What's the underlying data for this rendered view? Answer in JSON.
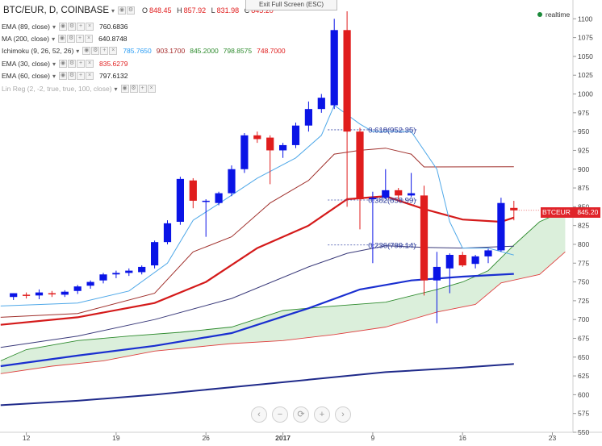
{
  "header": {
    "symbol": "BTC/EUR, D, COINBASE",
    "ohlc": [
      {
        "label": "O",
        "value": "848.45"
      },
      {
        "label": "H",
        "value": "857.92"
      },
      {
        "label": "L",
        "value": "831.98"
      },
      {
        "label": "C",
        "value": "845.20"
      }
    ],
    "exit_fullscreen": "Exit Full Screen (ESC)",
    "realtime": "realtime"
  },
  "indicators": [
    {
      "name": "EMA (89, close)",
      "values": [
        {
          "v": "760.6836",
          "color": "#222222"
        }
      ]
    },
    {
      "name": "MA (200, close)",
      "values": [
        {
          "v": "640.8748",
          "color": "#222222"
        }
      ]
    },
    {
      "name": "Ichimoku (9, 26, 52, 26)",
      "values": [
        {
          "v": "785.7650",
          "color": "#2a9df4"
        },
        {
          "v": "903.1700",
          "color": "#a52a2a"
        },
        {
          "v": "845.2000",
          "color": "#2e8b2e"
        },
        {
          "v": "798.8575",
          "color": "#2e8b2e"
        },
        {
          "v": "748.7000",
          "color": "#e01d1d"
        }
      ]
    },
    {
      "name": "EMA (30, close)",
      "values": [
        {
          "v": "835.6279",
          "color": "#e01d1d"
        }
      ]
    },
    {
      "name": "EMA (60, close)",
      "values": [
        {
          "v": "797.6132",
          "color": "#222222"
        }
      ]
    },
    {
      "name": "Lin Reg (2, -2, true, true, 100, close)",
      "values": []
    }
  ],
  "price_tag": {
    "label": "BTCEUR",
    "value": "845.20"
  },
  "nav_buttons": [
    "‹",
    "−",
    "⟳",
    "+",
    "›"
  ],
  "colors": {
    "up": "#0a14e6",
    "down": "#e01d1d",
    "cloud": "#d5ecd5",
    "ema89": "#1a2fd0",
    "ma200": "#1f2a8a",
    "ema30": "#d41a1a",
    "ema60": "#3a3a7a",
    "tenkan": "#4fa8e8",
    "kijun": "#a0302c",
    "spanA": "#2e8b2e",
    "spanB": "#e04040"
  },
  "chart_data": {
    "type": "candlestick",
    "title": "BTC/EUR, D, COINBASE",
    "ylim": [
      550,
      1110
    ],
    "y_ticks": [
      550,
      575,
      600,
      625,
      650,
      675,
      700,
      725,
      750,
      775,
      800,
      825,
      850,
      875,
      900,
      925,
      950,
      975,
      1000,
      1025,
      1050,
      1075,
      1100
    ],
    "x_ticks": [
      {
        "label": "12",
        "i": 1
      },
      {
        "label": "19",
        "i": 8
      },
      {
        "label": "26",
        "i": 15
      },
      {
        "label": "2017",
        "i": 21
      },
      {
        "label": "9",
        "i": 28
      },
      {
        "label": "16",
        "i": 35
      },
      {
        "label": "23",
        "i": 42
      }
    ],
    "candles": [
      {
        "o": 730,
        "h": 735,
        "l": 726,
        "c": 735
      },
      {
        "o": 733,
        "h": 736,
        "l": 728,
        "c": 732
      },
      {
        "o": 732,
        "h": 740,
        "l": 727,
        "c": 736
      },
      {
        "o": 735,
        "h": 738,
        "l": 730,
        "c": 734
      },
      {
        "o": 733,
        "h": 739,
        "l": 730,
        "c": 737
      },
      {
        "o": 738,
        "h": 746,
        "l": 734,
        "c": 744
      },
      {
        "o": 745,
        "h": 752,
        "l": 741,
        "c": 750
      },
      {
        "o": 752,
        "h": 762,
        "l": 748,
        "c": 760
      },
      {
        "o": 760,
        "h": 765,
        "l": 755,
        "c": 762
      },
      {
        "o": 762,
        "h": 768,
        "l": 758,
        "c": 765
      },
      {
        "o": 763,
        "h": 772,
        "l": 760,
        "c": 770
      },
      {
        "o": 772,
        "h": 805,
        "l": 768,
        "c": 803
      },
      {
        "o": 803,
        "h": 832,
        "l": 800,
        "c": 828
      },
      {
        "o": 830,
        "h": 890,
        "l": 826,
        "c": 887
      },
      {
        "o": 885,
        "h": 888,
        "l": 848,
        "c": 858
      },
      {
        "o": 858,
        "h": 860,
        "l": 810,
        "c": 858
      },
      {
        "o": 855,
        "h": 870,
        "l": 852,
        "c": 868
      },
      {
        "o": 868,
        "h": 905,
        "l": 864,
        "c": 900
      },
      {
        "o": 900,
        "h": 948,
        "l": 895,
        "c": 945
      },
      {
        "o": 945,
        "h": 950,
        "l": 935,
        "c": 940
      },
      {
        "o": 942,
        "h": 945,
        "l": 880,
        "c": 925
      },
      {
        "o": 925,
        "h": 935,
        "l": 915,
        "c": 932
      },
      {
        "o": 932,
        "h": 962,
        "l": 928,
        "c": 958
      },
      {
        "o": 958,
        "h": 990,
        "l": 950,
        "c": 980
      },
      {
        "o": 980,
        "h": 1000,
        "l": 975,
        "c": 995
      },
      {
        "o": 985,
        "h": 1100,
        "l": 980,
        "c": 1085
      },
      {
        "o": 1085,
        "h": 1110,
        "l": 850,
        "c": 950
      },
      {
        "o": 950,
        "h": 955,
        "l": 820,
        "c": 860
      },
      {
        "o": 860,
        "h": 870,
        "l": 775,
        "c": 862
      },
      {
        "o": 862,
        "h": 900,
        "l": 860,
        "c": 872
      },
      {
        "o": 872,
        "h": 875,
        "l": 860,
        "c": 865
      },
      {
        "o": 865,
        "h": 895,
        "l": 863,
        "c": 868
      },
      {
        "o": 865,
        "h": 878,
        "l": 732,
        "c": 752
      },
      {
        "o": 752,
        "h": 790,
        "l": 695,
        "c": 770
      },
      {
        "o": 768,
        "h": 788,
        "l": 735,
        "c": 786
      },
      {
        "o": 786,
        "h": 790,
        "l": 770,
        "c": 772
      },
      {
        "o": 774,
        "h": 786,
        "l": 768,
        "c": 784
      },
      {
        "o": 784,
        "h": 794,
        "l": 775,
        "c": 792
      },
      {
        "o": 792,
        "h": 862,
        "l": 790,
        "c": 855
      },
      {
        "o": 848.45,
        "h": 857.92,
        "l": 831.98,
        "c": 845.2
      }
    ],
    "ema89": [
      {
        "x": -1,
        "y": 638
      },
      {
        "x": 5,
        "y": 652
      },
      {
        "x": 11,
        "y": 665
      },
      {
        "x": 17,
        "y": 682
      },
      {
        "x": 23,
        "y": 715
      },
      {
        "x": 27,
        "y": 740
      },
      {
        "x": 31,
        "y": 752
      },
      {
        "x": 35,
        "y": 757
      },
      {
        "x": 39,
        "y": 760.7
      }
    ],
    "ma200": [
      {
        "x": -1,
        "y": 586
      },
      {
        "x": 5,
        "y": 592
      },
      {
        "x": 11,
        "y": 600
      },
      {
        "x": 17,
        "y": 610
      },
      {
        "x": 23,
        "y": 620
      },
      {
        "x": 29,
        "y": 630
      },
      {
        "x": 35,
        "y": 636
      },
      {
        "x": 39,
        "y": 640.9
      }
    ],
    "ema30": [
      {
        "x": -1,
        "y": 693
      },
      {
        "x": 5,
        "y": 703
      },
      {
        "x": 11,
        "y": 722
      },
      {
        "x": 15,
        "y": 750
      },
      {
        "x": 19,
        "y": 795
      },
      {
        "x": 23,
        "y": 825
      },
      {
        "x": 26,
        "y": 860
      },
      {
        "x": 29,
        "y": 864
      },
      {
        "x": 32,
        "y": 847
      },
      {
        "x": 35,
        "y": 833
      },
      {
        "x": 38,
        "y": 830
      },
      {
        "x": 39,
        "y": 835.6
      }
    ],
    "ema60": [
      {
        "x": -1,
        "y": 663
      },
      {
        "x": 5,
        "y": 678
      },
      {
        "x": 11,
        "y": 700
      },
      {
        "x": 17,
        "y": 728
      },
      {
        "x": 23,
        "y": 770
      },
      {
        "x": 26,
        "y": 788
      },
      {
        "x": 29,
        "y": 798
      },
      {
        "x": 32,
        "y": 796
      },
      {
        "x": 35,
        "y": 795
      },
      {
        "x": 39,
        "y": 797.6
      }
    ],
    "tenkan": [
      {
        "x": -1,
        "y": 718
      },
      {
        "x": 5,
        "y": 722
      },
      {
        "x": 9,
        "y": 738
      },
      {
        "x": 12,
        "y": 775
      },
      {
        "x": 14,
        "y": 832
      },
      {
        "x": 16,
        "y": 854
      },
      {
        "x": 19,
        "y": 888
      },
      {
        "x": 22,
        "y": 915
      },
      {
        "x": 24,
        "y": 945
      },
      {
        "x": 25,
        "y": 985
      },
      {
        "x": 27,
        "y": 960
      },
      {
        "x": 28,
        "y": 950
      },
      {
        "x": 30,
        "y": 950
      },
      {
        "x": 31,
        "y": 950
      },
      {
        "x": 33,
        "y": 900
      },
      {
        "x": 34,
        "y": 830
      },
      {
        "x": 35,
        "y": 795
      },
      {
        "x": 37,
        "y": 795
      },
      {
        "x": 39,
        "y": 785.8
      }
    ],
    "kijun": [
      {
        "x": -1,
        "y": 703
      },
      {
        "x": 5,
        "y": 708
      },
      {
        "x": 11,
        "y": 735
      },
      {
        "x": 14,
        "y": 790
      },
      {
        "x": 17,
        "y": 810
      },
      {
        "x": 20,
        "y": 855
      },
      {
        "x": 23,
        "y": 885
      },
      {
        "x": 25,
        "y": 920
      },
      {
        "x": 27,
        "y": 925
      },
      {
        "x": 29,
        "y": 928
      },
      {
        "x": 31,
        "y": 920
      },
      {
        "x": 32,
        "y": 903
      },
      {
        "x": 39,
        "y": 903.2
      }
    ],
    "span_a": [
      {
        "x": -1,
        "y": 645
      },
      {
        "x": 1,
        "y": 660
      },
      {
        "x": 5,
        "y": 672
      },
      {
        "x": 9,
        "y": 678
      },
      {
        "x": 13,
        "y": 683
      },
      {
        "x": 17,
        "y": 690
      },
      {
        "x": 21,
        "y": 712
      },
      {
        "x": 25,
        "y": 718
      },
      {
        "x": 29,
        "y": 723
      },
      {
        "x": 33,
        "y": 740
      },
      {
        "x": 35,
        "y": 750
      },
      {
        "x": 37,
        "y": 765
      },
      {
        "x": 39,
        "y": 798.9
      },
      {
        "x": 41,
        "y": 830
      },
      {
        "x": 43,
        "y": 845.2
      }
    ],
    "span_b": [
      {
        "x": -1,
        "y": 628
      },
      {
        "x": 3,
        "y": 638
      },
      {
        "x": 7,
        "y": 645
      },
      {
        "x": 11,
        "y": 658
      },
      {
        "x": 17,
        "y": 668
      },
      {
        "x": 21,
        "y": 672
      },
      {
        "x": 25,
        "y": 680
      },
      {
        "x": 29,
        "y": 690
      },
      {
        "x": 33,
        "y": 710
      },
      {
        "x": 36,
        "y": 720
      },
      {
        "x": 38,
        "y": 748.7
      },
      {
        "x": 41,
        "y": 760
      },
      {
        "x": 43,
        "y": 790
      }
    ],
    "fib_levels": [
      {
        "label": "0.618(952.35)",
        "y": 952.35,
        "x_start": 24.5,
        "x_end": 31.5
      },
      {
        "label": "0.382(858.99)",
        "y": 858.99,
        "x_start": 24.5,
        "x_end": 31.5
      },
      {
        "label": "0.236(799.14)",
        "y": 799.14,
        "x_start": 24.5,
        "x_end": 31.5
      }
    ]
  }
}
